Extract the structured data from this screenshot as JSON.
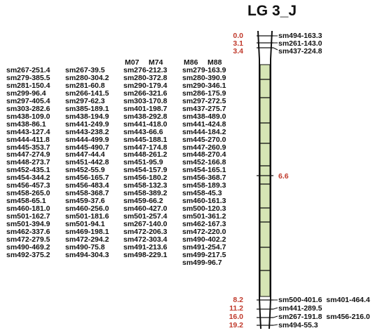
{
  "title": "LG 3_J",
  "colors": {
    "chromosome_fill": "#d6e5b5",
    "position_text": "#c0392b",
    "marker_text": "#111111"
  },
  "column_headers": [
    "M07",
    "M74",
    "M86",
    "M88"
  ],
  "columns": [
    [
      "sm267-251.4",
      "sm279-385.5",
      "sm281-150.4",
      "sm299-96.4",
      "sm297-405.4",
      "sm303-282.6",
      "sm438-109.0",
      "sm438-86.1",
      "sm443-127.4",
      "sm444-411.8",
      "sm445-353.7",
      "sm447-274.9",
      "sm448-273.7",
      "sm452-435.1",
      "sm454-344.2",
      "sm456-457.3",
      "sm458-265.0",
      "sm458-65.1",
      "sm460-181.0",
      "sm501-162.7",
      "sm501-394.9",
      "sm462-337.6",
      "sm472-279.5",
      "sm490-469.2",
      "sm492-375.2"
    ],
    [
      "sm267-39.5",
      "sm280-304.2",
      "sm281-60.8",
      "sm266-141.5",
      "sm297-62.3",
      "sm385-189.1",
      "sm438-194.9",
      "sm441-249.9",
      "sm443-238.2",
      "sm444-499.9",
      "sm445-490.7",
      "sm447-44.4",
      "sm451-442.8",
      "sm452-55.9",
      "sm456-165.7",
      "sm456-483.4",
      "sm458-368.7",
      "sm459-37.6",
      "sm460-256.0",
      "sm501-181.6",
      "sm501-94.1",
      "sm469-198.1",
      "sm472-294.2",
      "sm490-75.8",
      "sm494-304.3"
    ],
    [
      "sm276-212.3",
      "sm280-372.8",
      "sm290-179.4",
      "sm266-321.6",
      "sm303-170.8",
      "sm401-198.7",
      "sm438-292.8",
      "sm441-418.0",
      "sm443-66.6",
      "sm445-188.1",
      "sm447-174.8",
      "sm448-261.2",
      "sm451-95.9",
      "sm454-157.9",
      "sm456-180.2",
      "sm458-132.3",
      "sm458-389.2",
      "sm459-66.2",
      "sm460-427.0",
      "sm501-257.4",
      "sm267-140.0",
      "sm472-206.3",
      "sm472-303.4",
      "sm491-213.6",
      "sm498-229.1"
    ],
    [
      "sm279-163.9",
      "sm280-390.9",
      "sm290-346.1",
      "sm286-175.9",
      "sm297-272.5",
      "sm437-275.7",
      "sm438-489.0",
      "sm441-424.8",
      "sm444-184.2",
      "sm445-270.0",
      "sm447-260.9",
      "sm448-270.4",
      "sm452-166.8",
      "sm454-165.1",
      "sm456-368.7",
      "sm458-189.3",
      "sm458-45.3",
      "sm460-161.3",
      "sm500-120.3",
      "sm501-361.2",
      "sm462-167.3",
      "sm472-220.0",
      "sm490-402.2",
      "sm491-254.7",
      "sm499-217.5",
      "sm499-96.7"
    ]
  ],
  "top_positions": [
    "0.0",
    "3.1",
    "3.4"
  ],
  "top_markers": [
    "sm494-163.3",
    "sm261-143.0",
    "sm437-224.8"
  ],
  "middle_position": "6.6",
  "bottom_positions": [
    "8.2",
    "11.2",
    "16.0",
    "19.2"
  ],
  "bottom_markers": [
    "sm500-401.6  sm401-464.4",
    "sm441-289.5",
    "sm267-191.8  sm456-216.0",
    "sm494-55.3"
  ]
}
